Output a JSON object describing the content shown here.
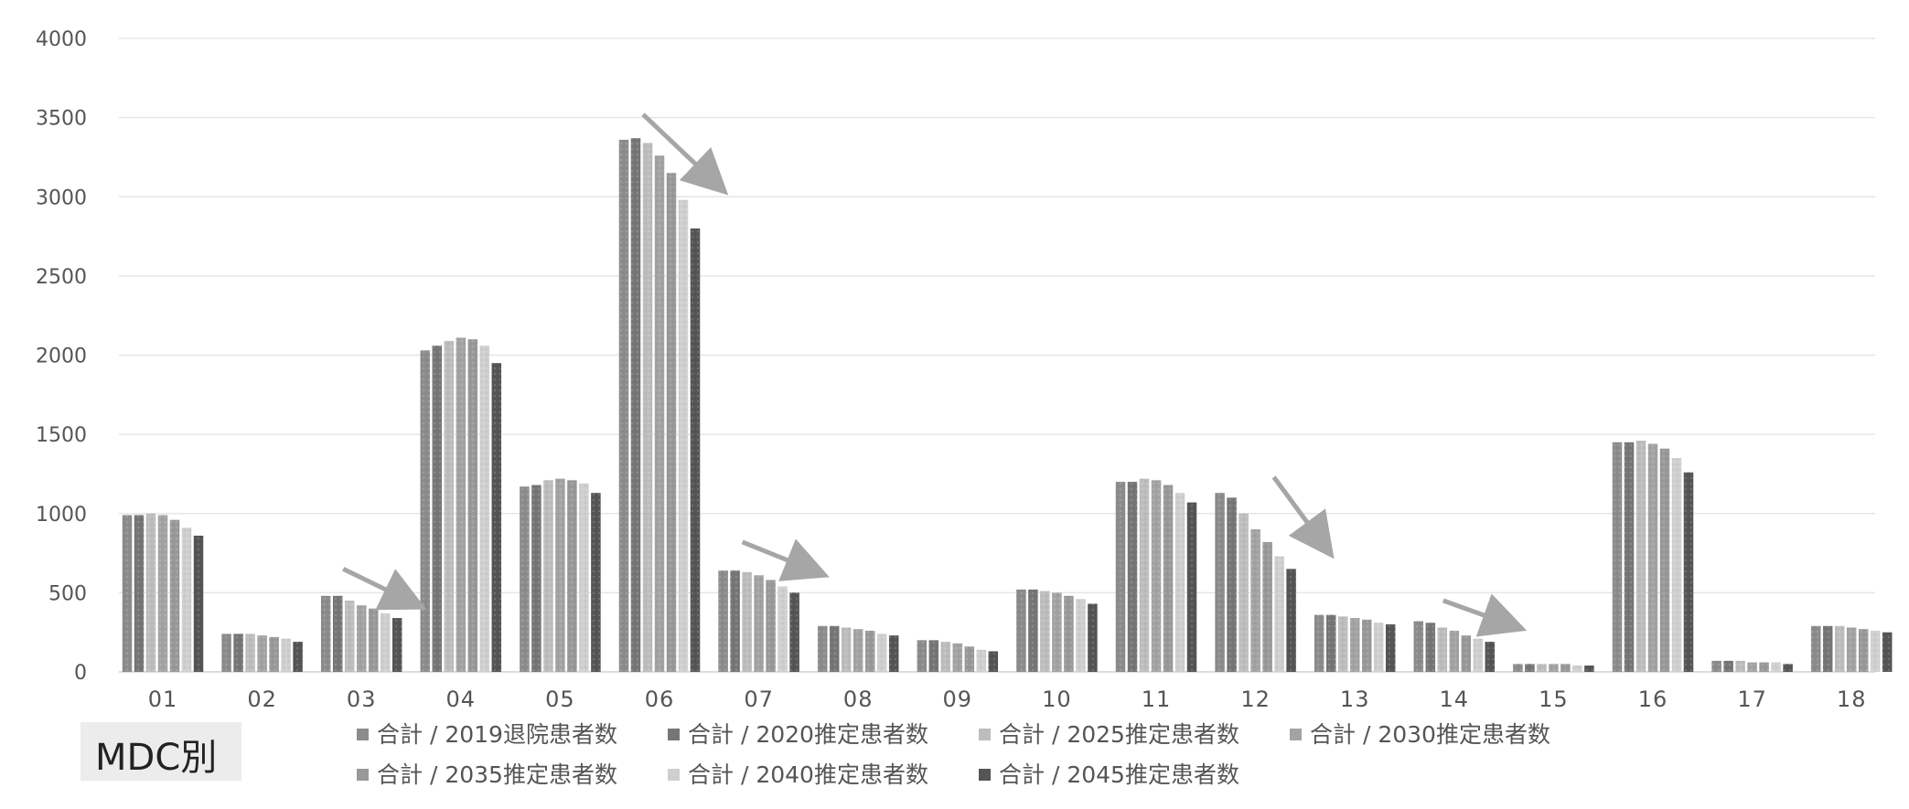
{
  "chart_data": {
    "type": "bar",
    "categories": [
      "01",
      "02",
      "03",
      "04",
      "05",
      "06",
      "07",
      "08",
      "09",
      "10",
      "11",
      "12",
      "13",
      "14",
      "15",
      "16",
      "17",
      "18"
    ],
    "yticks": [
      "0",
      "500",
      "1000",
      "1500",
      "2000",
      "2500",
      "3000",
      "3500",
      "4000"
    ],
    "ylim": [
      0,
      4000
    ],
    "grid": true,
    "legend_position": "bottom",
    "label": "MDC別",
    "series": [
      {
        "name": "合計 / 2019退院患者数",
        "color": "#8c8c8c",
        "values": [
          990,
          240,
          480,
          2030,
          1170,
          3360,
          640,
          290,
          200,
          520,
          1200,
          1130,
          360,
          320,
          50,
          1450,
          70,
          290
        ]
      },
      {
        "name": "合計 / 2020推定患者数",
        "color": "#767676",
        "values": [
          990,
          240,
          480,
          2060,
          1180,
          3370,
          640,
          290,
          200,
          520,
          1200,
          1100,
          360,
          310,
          50,
          1450,
          70,
          290
        ]
      },
      {
        "name": "合計 / 2025推定患者数",
        "color": "#bdbdbd",
        "values": [
          1000,
          240,
          450,
          2090,
          1210,
          3340,
          630,
          280,
          190,
          510,
          1220,
          1000,
          350,
          280,
          50,
          1460,
          70,
          290
        ]
      },
      {
        "name": "合計 / 2030推定患者数",
        "color": "#a3a3a3",
        "values": [
          990,
          230,
          420,
          2110,
          1220,
          3260,
          610,
          270,
          180,
          500,
          1210,
          900,
          340,
          260,
          50,
          1440,
          60,
          280
        ]
      },
      {
        "name": "合計 / 2035推定患者数",
        "color": "#999999",
        "values": [
          960,
          220,
          400,
          2100,
          1210,
          3150,
          580,
          260,
          160,
          480,
          1180,
          820,
          330,
          230,
          50,
          1410,
          60,
          270
        ]
      },
      {
        "name": "合計 / 2040推定患者数",
        "color": "#cfcfcf",
        "values": [
          910,
          210,
          370,
          2060,
          1190,
          2980,
          540,
          240,
          140,
          460,
          1130,
          730,
          310,
          210,
          40,
          1350,
          60,
          260
        ]
      },
      {
        "name": "合計 / 2045推定患者数",
        "color": "#555555",
        "values": [
          860,
          190,
          340,
          1950,
          1130,
          2800,
          500,
          230,
          130,
          430,
          1070,
          650,
          300,
          190,
          40,
          1260,
          50,
          250
        ]
      }
    ]
  }
}
